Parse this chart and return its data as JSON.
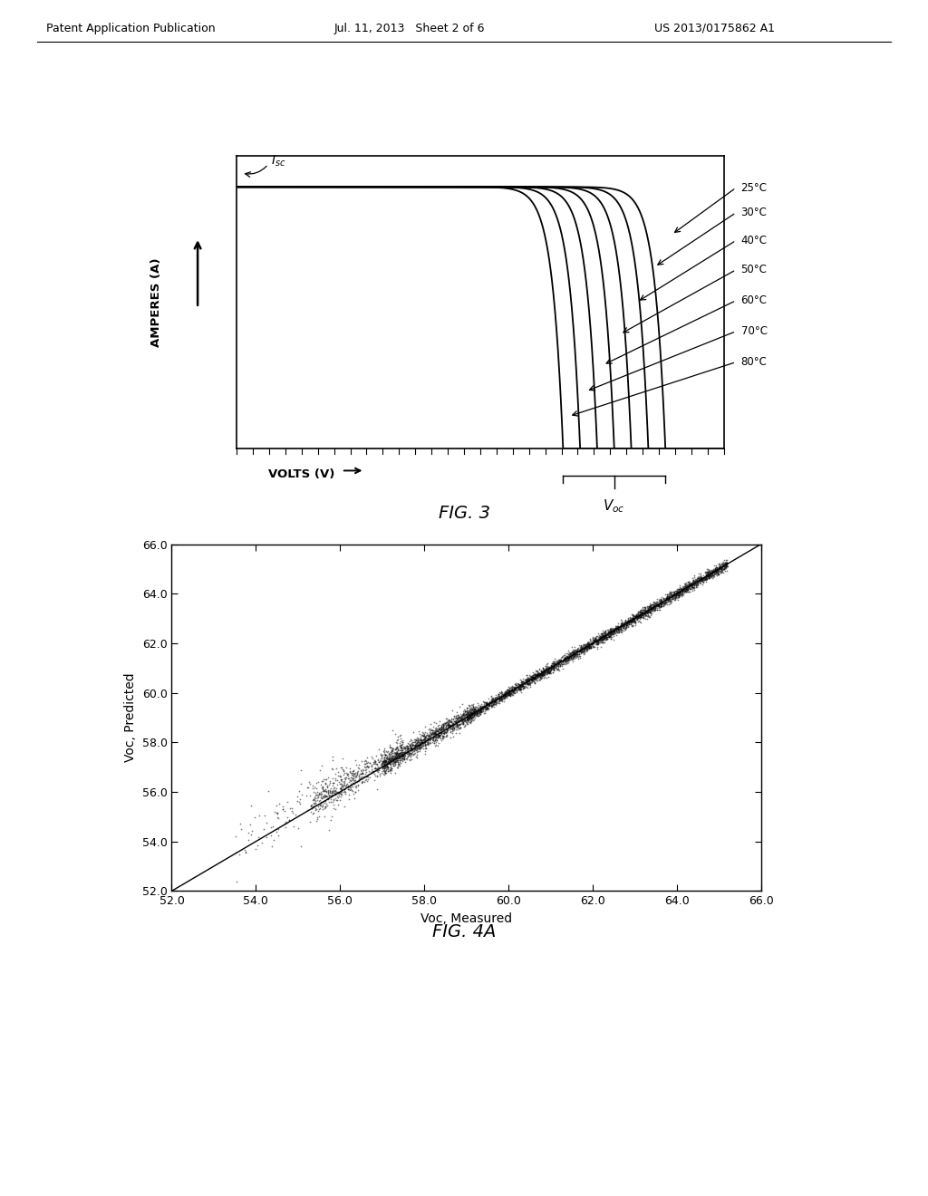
{
  "fig_width": 10.24,
  "fig_height": 13.2,
  "bg_color": "#ffffff",
  "header_left": "Patent Application Publication",
  "header_center": "Jul. 11, 2013   Sheet 2 of 6",
  "header_right": "US 2013/0175862 A1",
  "fig3_title": "FIG. 3",
  "fig4a_title": "FIG. 4A",
  "fig3_ylabel": "AMPERES (A)",
  "fig3_xlabel": "VOLTS (V)",
  "fig3_temperatures": [
    "25°C",
    "30°C",
    "40°C",
    "50°C",
    "60°C",
    "70°C",
    "80°C"
  ],
  "fig3_voc_values": [
    0.88,
    0.845,
    0.81,
    0.775,
    0.74,
    0.705,
    0.67
  ],
  "fig4a_xlabel": "Voc, Measured",
  "fig4a_ylabel": "Voc, Predicted",
  "fig4a_xlim": [
    52.0,
    66.0
  ],
  "fig4a_ylim": [
    52.0,
    66.0
  ],
  "fig4a_xticks": [
    52.0,
    54.0,
    56.0,
    58.0,
    60.0,
    62.0,
    64.0,
    66.0
  ],
  "fig4a_yticks": [
    52.0,
    54.0,
    56.0,
    58.0,
    60.0,
    62.0,
    64.0,
    66.0
  ],
  "line_color": "#000000",
  "scatter_color": "#111111",
  "header_fontsize": 9,
  "caption_fontsize": 14,
  "axis_label_fontsize": 10,
  "tick_fontsize": 9
}
